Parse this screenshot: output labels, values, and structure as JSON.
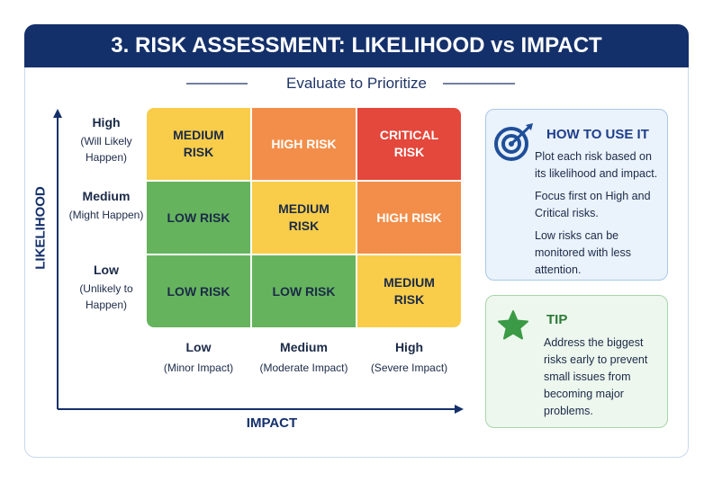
{
  "header": {
    "title": "3. RISK ASSESSMENT: LIKELIHOOD vs IMPACT",
    "subtitle": "Evaluate to Prioritize"
  },
  "axes": {
    "y_label": "LIKELIHOOD",
    "x_label": "IMPACT"
  },
  "rows": [
    {
      "label": "High",
      "sub": "(Will Likely Happen)"
    },
    {
      "label": "Medium",
      "sub": "(Might Happen)"
    },
    {
      "label": "Low",
      "sub": "(Unlikely to Happen)"
    }
  ],
  "columns": [
    {
      "label": "Low",
      "sub": "(Minor Impact)"
    },
    {
      "label": "Medium",
      "sub": "(Moderate Impact)"
    },
    {
      "label": "High",
      "sub": "(Severe Impact)"
    }
  ],
  "cells": [
    [
      {
        "text": "MEDIUM RISK",
        "color": "#f9cd4a",
        "text_color": "#1b2a48"
      },
      {
        "text": "HIGH RISK",
        "color": "#f28e4a",
        "text_color": "#ffffff"
      },
      {
        "text": "CRITICAL RISK",
        "color": "#e4473b",
        "text_color": "#ffffff"
      }
    ],
    [
      {
        "text": "LOW RISK",
        "color": "#65b45d",
        "text_color": "#1b2a48"
      },
      {
        "text": "MEDIUM RISK",
        "color": "#f9cd4a",
        "text_color": "#1b2a48"
      },
      {
        "text": "HIGH RISK",
        "color": "#f28e4a",
        "text_color": "#ffffff"
      }
    ],
    [
      {
        "text": "LOW RISK",
        "color": "#65b45d",
        "text_color": "#1b2a48"
      },
      {
        "text": "LOW RISK",
        "color": "#65b45d",
        "text_color": "#1b2a48"
      },
      {
        "text": "MEDIUM RISK",
        "color": "#f9cd4a",
        "text_color": "#1b2a48"
      }
    ]
  ],
  "how_to": {
    "title": "HOW TO USE IT",
    "paragraphs": [
      "Plot each risk based on its likelihood and impact.",
      "Focus first on High and Critical risks.",
      "Low risks can be monitored with less attention."
    ]
  },
  "tip": {
    "title": "TIP",
    "paragraphs": [
      "Address the biggest risks early to prevent small issues from becoming major problems."
    ]
  }
}
